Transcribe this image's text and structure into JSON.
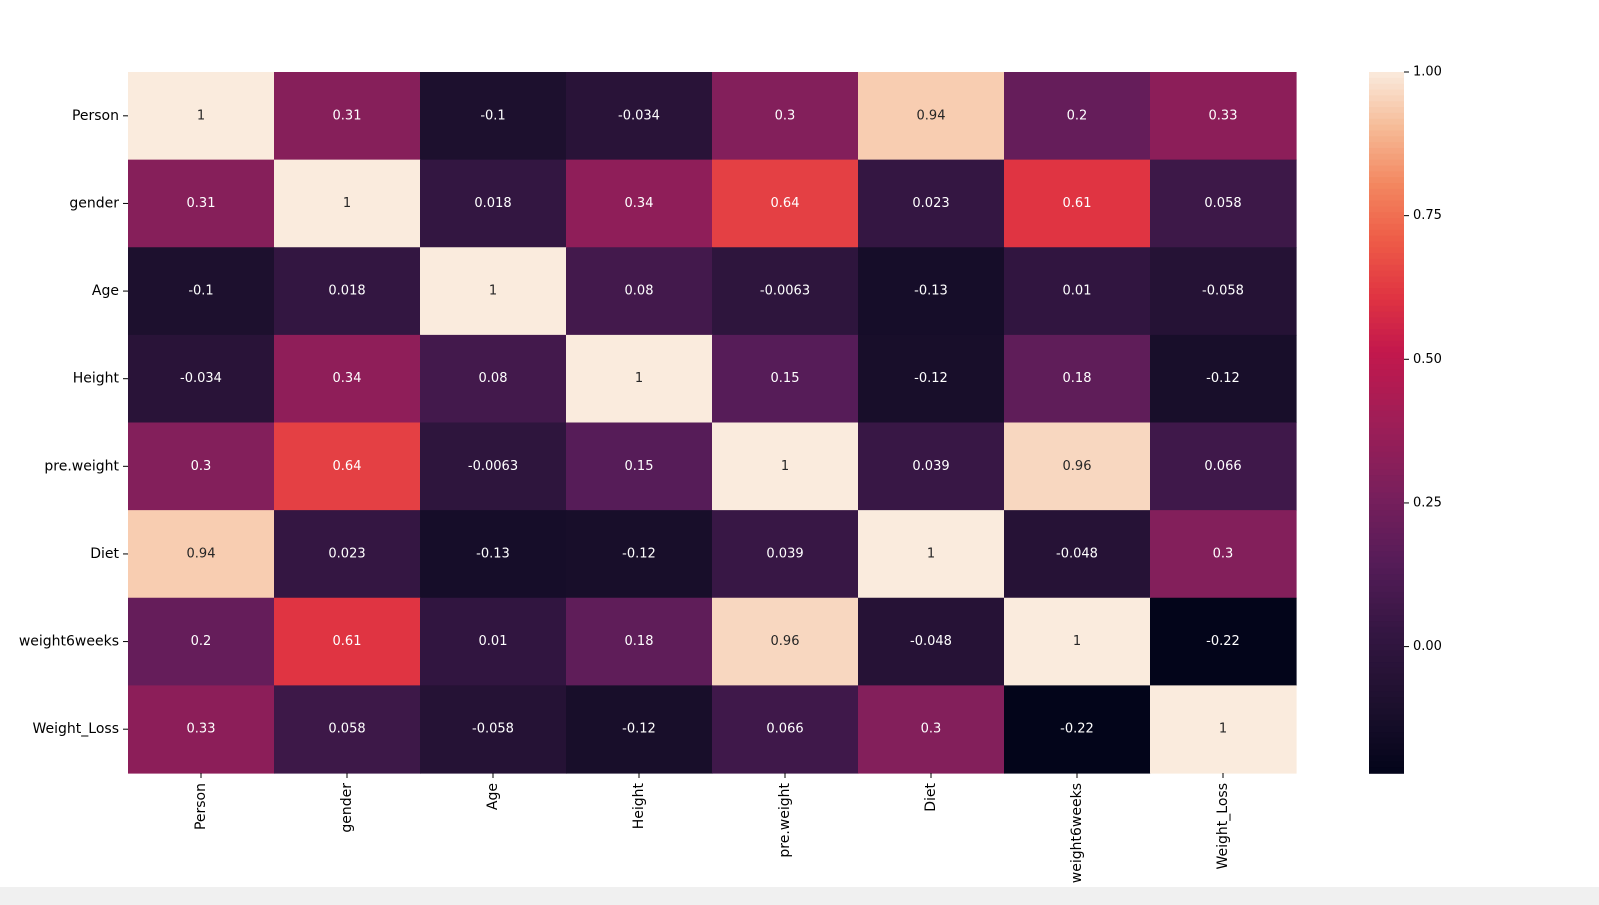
{
  "chart_data": {
    "type": "heatmap",
    "title": "",
    "xlabel": "",
    "ylabel": "",
    "row_labels": [
      "Person",
      "gender",
      "Age",
      "Height",
      "pre.weight",
      "Diet",
      "weight6weeks",
      "Weight_Loss"
    ],
    "col_labels": [
      "Person",
      "gender",
      "Age",
      "Height",
      "pre.weight",
      "Diet",
      "weight6weeks",
      "Weight_Loss"
    ],
    "values": [
      [
        1,
        0.31,
        -0.1,
        -0.034,
        0.3,
        0.94,
        0.2,
        0.33
      ],
      [
        0.31,
        1,
        0.018,
        0.34,
        0.64,
        0.023,
        0.61,
        0.058
      ],
      [
        -0.1,
        0.018,
        1,
        0.08,
        -0.0063,
        -0.13,
        0.01,
        -0.058
      ],
      [
        -0.034,
        0.34,
        0.08,
        1,
        0.15,
        -0.12,
        0.18,
        -0.12
      ],
      [
        0.3,
        0.64,
        -0.0063,
        0.15,
        1,
        0.039,
        0.96,
        0.066
      ],
      [
        0.94,
        0.023,
        -0.13,
        -0.12,
        0.039,
        1,
        -0.048,
        0.3
      ],
      [
        0.2,
        0.61,
        0.01,
        0.18,
        0.96,
        -0.048,
        1,
        -0.22
      ],
      [
        0.33,
        0.058,
        -0.058,
        -0.12,
        0.066,
        0.3,
        -0.22,
        1
      ]
    ],
    "colorbar": {
      "colormap": "rocket",
      "vmin": -0.22,
      "vmax": 1.0,
      "ticks": [
        0.0,
        0.25,
        0.5,
        0.75,
        1.0
      ],
      "tick_labels": [
        "0.00",
        "0.25",
        "0.50",
        "0.75",
        "1.00"
      ]
    }
  }
}
